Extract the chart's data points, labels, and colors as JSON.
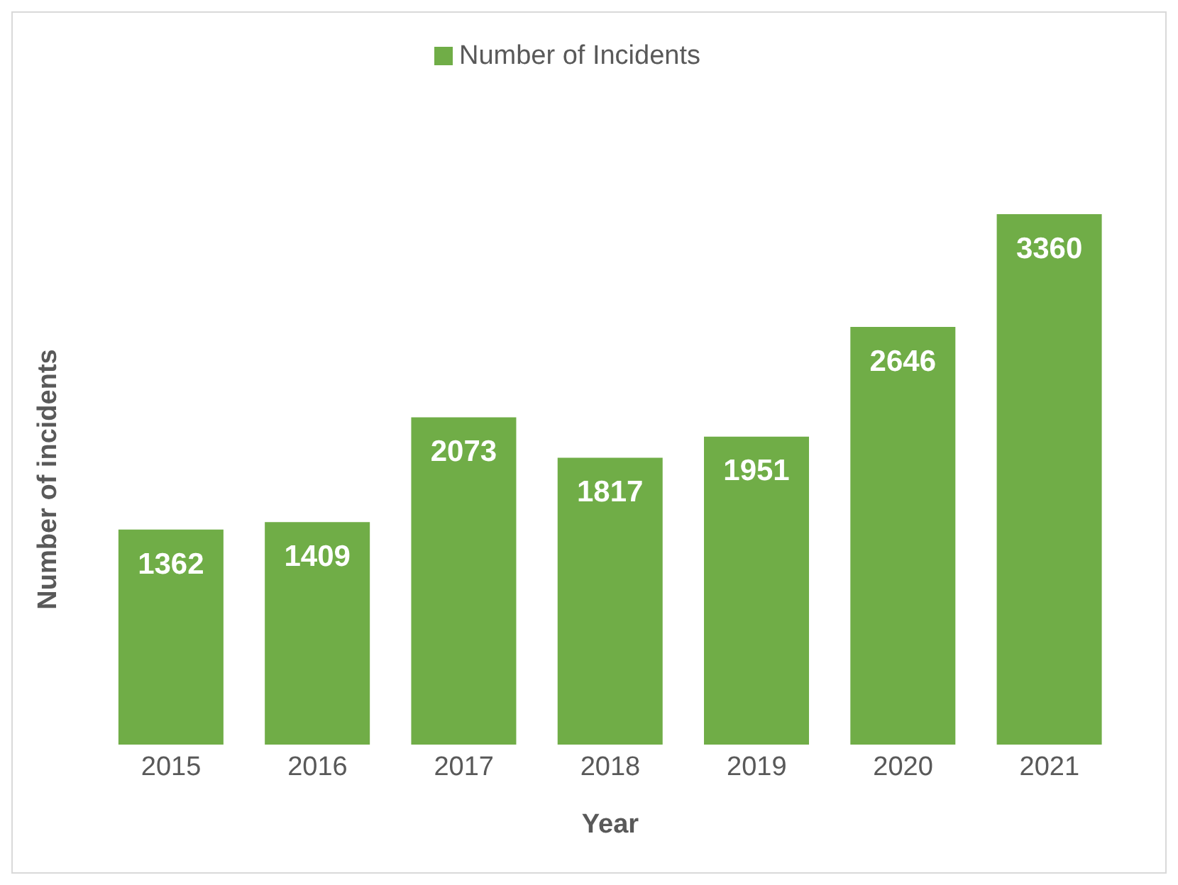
{
  "chart_data": {
    "type": "bar",
    "xlabel": "Year",
    "ylabel": "Number of incidents",
    "categories": [
      "2015",
      "2016",
      "2017",
      "2018",
      "2019",
      "2020",
      "2021"
    ],
    "series": [
      {
        "name": "Number of Incidents",
        "color": "#70ad47",
        "values": [
          1362,
          1409,
          2073,
          1817,
          1951,
          2646,
          3360
        ]
      }
    ],
    "data_labels": true,
    "legend": "top",
    "tick_labels": "x"
  }
}
